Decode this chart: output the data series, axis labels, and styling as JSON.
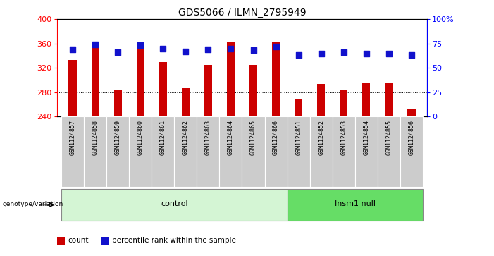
{
  "title": "GDS5066 / ILMN_2795949",
  "samples": [
    "GSM1124857",
    "GSM1124858",
    "GSM1124859",
    "GSM1124860",
    "GSM1124861",
    "GSM1124862",
    "GSM1124863",
    "GSM1124864",
    "GSM1124865",
    "GSM1124866",
    "GSM1124851",
    "GSM1124852",
    "GSM1124853",
    "GSM1124854",
    "GSM1124855",
    "GSM1124856"
  ],
  "counts": [
    333,
    360,
    283,
    362,
    330,
    287,
    325,
    362,
    325,
    362,
    268,
    293,
    283,
    295,
    295,
    252
  ],
  "percentile_ranks": [
    69,
    74,
    66,
    73,
    70,
    67,
    69,
    70,
    68,
    72,
    63,
    65,
    66,
    65,
    65,
    63
  ],
  "ymin": 240,
  "ymax": 400,
  "yticks": [
    240,
    280,
    320,
    360,
    400
  ],
  "right_yticks": [
    0,
    25,
    50,
    75,
    100
  ],
  "right_ylabels": [
    "0",
    "25",
    "50",
    "75",
    "100%"
  ],
  "control_count": 10,
  "insm1_count": 6,
  "control_label": "control",
  "insm1_label": "Insm1 null",
  "group_label": "genotype/variation",
  "legend_count_label": "count",
  "legend_pct_label": "percentile rank within the sample",
  "bar_color": "#cc0000",
  "dot_color": "#1111cc",
  "control_bg": "#d4f5d4",
  "insm1_bg": "#66dd66",
  "tick_bg": "#cccccc",
  "bar_width": 0.35,
  "dot_size": 28,
  "title_fontsize": 10,
  "axis_fontsize": 8,
  "label_fontsize": 7,
  "sample_fontsize": 6
}
